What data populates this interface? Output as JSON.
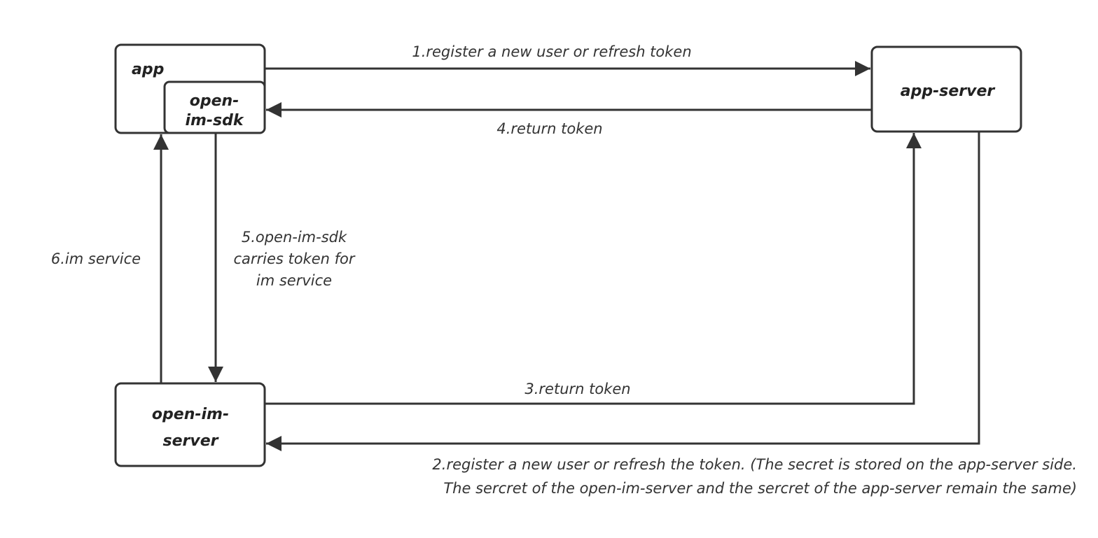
{
  "nodes": [
    {
      "label": [
        "app"
      ]
    },
    {
      "label": [
        "open-",
        "im-sdk"
      ]
    },
    {
      "label": [
        "app-server"
      ]
    },
    {
      "label": [
        "open-im-",
        "server"
      ]
    }
  ],
  "edges": [
    {
      "label": [
        "1.register a new user or refresh token"
      ]
    },
    {
      "label": [
        "2.register a new user or refresh the token. (The secret is stored on the app-server side.",
        "The sercret of the open-im-server and the sercret of the app-server remain the same)"
      ]
    },
    {
      "label": [
        "3.return token"
      ]
    },
    {
      "label": [
        "4.return token"
      ]
    },
    {
      "label": [
        "5.open-im-sdk",
        "carries token for",
        "im service"
      ]
    },
    {
      "label": [
        "6.im service"
      ]
    }
  ]
}
